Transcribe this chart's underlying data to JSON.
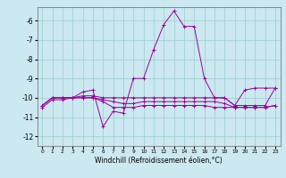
{
  "xlabel": "Windchill (Refroidissement éolien,°C)",
  "background_color": "#cce8f0",
  "grid_color": "#99cccc",
  "line_color": "#990099",
  "xlim": [
    -0.5,
    23.5
  ],
  "ylim": [
    -12.5,
    -5.3
  ],
  "yticks": [
    -12,
    -11,
    -10,
    -9,
    -8,
    -7,
    -6
  ],
  "xticks": [
    0,
    1,
    2,
    3,
    4,
    5,
    6,
    7,
    8,
    9,
    10,
    11,
    12,
    13,
    14,
    15,
    16,
    17,
    18,
    19,
    20,
    21,
    22,
    23
  ],
  "curve1": [
    [
      0,
      -10.4
    ],
    [
      1,
      -10.0
    ],
    [
      2,
      -10.0
    ],
    [
      3,
      -10.0
    ],
    [
      4,
      -9.7
    ],
    [
      5,
      -9.6
    ],
    [
      6,
      -11.5
    ],
    [
      7,
      -10.7
    ],
    [
      8,
      -10.8
    ],
    [
      9,
      -9.0
    ],
    [
      10,
      -9.0
    ],
    [
      11,
      -7.5
    ],
    [
      12,
      -6.2
    ],
    [
      13,
      -5.5
    ],
    [
      14,
      -6.3
    ],
    [
      15,
      -6.3
    ],
    [
      16,
      -9.0
    ],
    [
      17,
      -10.0
    ],
    [
      18,
      -10.0
    ],
    [
      19,
      -10.4
    ],
    [
      20,
      -9.6
    ],
    [
      21,
      -9.5
    ],
    [
      22,
      -9.5
    ],
    [
      23,
      -9.5
    ]
  ],
  "curve2": [
    [
      0,
      -10.4
    ],
    [
      1,
      -10.0
    ],
    [
      2,
      -10.0
    ],
    [
      3,
      -10.0
    ],
    [
      4,
      -9.9
    ],
    [
      5,
      -9.9
    ],
    [
      6,
      -10.0
    ],
    [
      7,
      -10.0
    ],
    [
      8,
      -10.0
    ],
    [
      9,
      -10.0
    ],
    [
      10,
      -10.0
    ],
    [
      11,
      -10.0
    ],
    [
      12,
      -10.0
    ],
    [
      13,
      -10.0
    ],
    [
      14,
      -10.0
    ],
    [
      15,
      -10.0
    ],
    [
      16,
      -10.0
    ],
    [
      17,
      -10.0
    ],
    [
      18,
      -10.0
    ],
    [
      19,
      -10.4
    ],
    [
      20,
      -10.4
    ],
    [
      21,
      -10.4
    ],
    [
      22,
      -10.4
    ],
    [
      23,
      -9.5
    ]
  ],
  "curve3": [
    [
      0,
      -10.4
    ],
    [
      1,
      -10.0
    ],
    [
      2,
      -10.0
    ],
    [
      3,
      -10.0
    ],
    [
      4,
      -10.0
    ],
    [
      5,
      -10.0
    ],
    [
      6,
      -10.1
    ],
    [
      7,
      -10.2
    ],
    [
      8,
      -10.3
    ],
    [
      9,
      -10.3
    ],
    [
      10,
      -10.2
    ],
    [
      11,
      -10.2
    ],
    [
      12,
      -10.2
    ],
    [
      13,
      -10.2
    ],
    [
      14,
      -10.2
    ],
    [
      15,
      -10.2
    ],
    [
      16,
      -10.2
    ],
    [
      17,
      -10.2
    ],
    [
      18,
      -10.3
    ],
    [
      19,
      -10.5
    ],
    [
      20,
      -10.5
    ],
    [
      21,
      -10.5
    ],
    [
      22,
      -10.5
    ],
    [
      23,
      -10.4
    ]
  ],
  "curve4": [
    [
      0,
      -10.5
    ],
    [
      1,
      -10.1
    ],
    [
      2,
      -10.1
    ],
    [
      3,
      -10.0
    ],
    [
      4,
      -10.0
    ],
    [
      5,
      -10.0
    ],
    [
      6,
      -10.2
    ],
    [
      7,
      -10.5
    ],
    [
      8,
      -10.5
    ],
    [
      9,
      -10.5
    ],
    [
      10,
      -10.4
    ],
    [
      11,
      -10.4
    ],
    [
      12,
      -10.4
    ],
    [
      13,
      -10.4
    ],
    [
      14,
      -10.4
    ],
    [
      15,
      -10.4
    ],
    [
      16,
      -10.4
    ],
    [
      17,
      -10.5
    ],
    [
      18,
      -10.5
    ],
    [
      19,
      -10.5
    ],
    [
      20,
      -10.5
    ],
    [
      21,
      -10.5
    ],
    [
      22,
      -10.5
    ],
    [
      23,
      -10.4
    ]
  ]
}
